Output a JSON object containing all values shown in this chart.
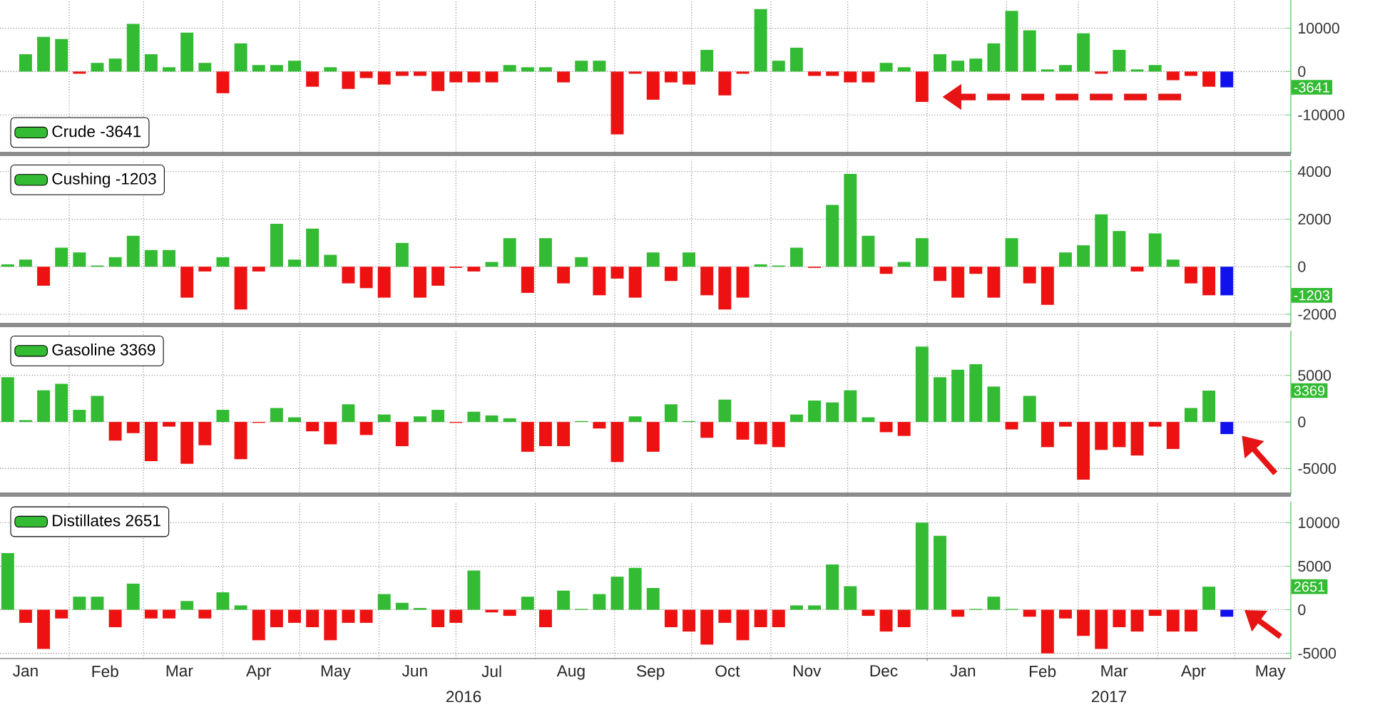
{
  "chart_data": [
    {
      "type": "bar",
      "x": [
        "2016-01-15",
        "2016-01-22",
        "2016-01-29",
        "2016-02-05",
        "2016-02-12",
        "2016-02-19",
        "2016-02-26",
        "2016-03-04",
        "2016-03-11",
        "2016-03-18",
        "2016-03-25",
        "2016-04-01",
        "2016-04-08",
        "2016-04-15",
        "2016-04-22",
        "2016-04-29",
        "2016-05-06",
        "2016-05-13",
        "2016-05-20",
        "2016-05-27",
        "2016-06-03",
        "2016-06-10",
        "2016-06-17",
        "2016-06-24",
        "2016-07-01",
        "2016-07-08",
        "2016-07-15",
        "2016-07-22",
        "2016-07-29",
        "2016-08-05",
        "2016-08-12",
        "2016-08-19",
        "2016-08-26",
        "2016-09-02",
        "2016-09-09",
        "2016-09-16",
        "2016-09-23",
        "2016-09-30",
        "2016-10-07",
        "2016-10-14",
        "2016-10-21",
        "2016-10-28",
        "2016-11-04",
        "2016-11-11",
        "2016-11-18",
        "2016-11-25",
        "2016-12-02",
        "2016-12-09",
        "2016-12-16",
        "2016-12-23",
        "2016-12-30",
        "2017-01-06",
        "2017-01-13",
        "2017-01-20",
        "2017-01-27",
        "2017-02-03",
        "2017-02-10",
        "2017-02-17",
        "2017-02-24",
        "2017-03-03",
        "2017-03-10",
        "2017-03-17",
        "2017-03-24",
        "2017-03-31",
        "2017-04-07",
        "2017-04-14",
        "2017-04-21",
        "2017-04-28"
      ],
      "xlim": [
        "2016-01-05",
        "2017-05-23"
      ],
      "xticks": [
        {
          "value": "2016-02-01",
          "label": null
        },
        {
          "value": "2016-03-01",
          "label": null
        },
        {
          "value": "2016-04-01",
          "label": null
        },
        {
          "value": "2016-05-01",
          "label": null
        },
        {
          "value": "2016-06-01",
          "label": null
        },
        {
          "value": "2016-07-01",
          "label": null
        },
        {
          "value": "2016-08-01",
          "label": null
        },
        {
          "value": "2016-09-01",
          "label": null
        },
        {
          "value": "2016-10-01",
          "label": null
        },
        {
          "value": "2016-11-01",
          "label": null
        },
        {
          "value": "2016-12-01",
          "label": null
        },
        {
          "value": "2017-01-01",
          "label": null
        },
        {
          "value": "2017-02-01",
          "label": null
        },
        {
          "value": "2017-03-01",
          "label": null
        },
        {
          "value": "2017-04-01",
          "label": null
        },
        {
          "value": "2017-05-01",
          "label": null
        }
      ],
      "ylim": [
        -19000,
        16500
      ],
      "yticks": [
        -10000,
        0,
        10000
      ],
      "grid": true,
      "legend": "bottom left",
      "tick_labels": "y",
      "series": [
        {
          "name": "Crude -3641",
          "color": "#33bb33",
          "values": [
            4000,
            8000,
            7500,
            -500,
            2000,
            3000,
            11000,
            4000,
            1000,
            9000,
            2000,
            -5000,
            6500,
            1500,
            1500,
            2500,
            -3500,
            1000,
            -4000,
            -1500,
            -3000,
            -1000,
            -1000,
            -4500,
            -2500,
            -2500,
            -2500,
            1500,
            1000,
            1000,
            -2500,
            2500,
            2500,
            -14500,
            -500,
            -6500,
            -2500,
            -3000,
            5000,
            -5500,
            -500,
            14400,
            2500,
            5500,
            -1000,
            -1000,
            -2500,
            -2500,
            2000,
            1000,
            -7000,
            4000,
            2500,
            3000,
            6500,
            14000,
            9500,
            500,
            1500,
            8800,
            -500,
            5000,
            500,
            1500,
            -2000,
            -1000,
            -3500,
            -3641
          ],
          "colors": [
            "#33bb33",
            "#33bb33",
            "#33bb33",
            "#ee1111",
            "#33bb33",
            "#33bb33",
            "#33bb33",
            "#33bb33",
            "#33bb33",
            "#33bb33",
            "#33bb33",
            "#ee1111",
            "#33bb33",
            "#33bb33",
            "#33bb33",
            "#33bb33",
            "#ee1111",
            "#33bb33",
            "#ee1111",
            "#ee1111",
            "#ee1111",
            "#ee1111",
            "#ee1111",
            "#ee1111",
            "#ee1111",
            "#ee1111",
            "#ee1111",
            "#33bb33",
            "#33bb33",
            "#33bb33",
            "#ee1111",
            "#33bb33",
            "#33bb33",
            "#ee1111",
            "#ee1111",
            "#ee1111",
            "#ee1111",
            "#ee1111",
            "#33bb33",
            "#ee1111",
            "#ee1111",
            "#33bb33",
            "#33bb33",
            "#33bb33",
            "#ee1111",
            "#ee1111",
            "#ee1111",
            "#ee1111",
            "#33bb33",
            "#33bb33",
            "#ee1111",
            "#33bb33",
            "#33bb33",
            "#33bb33",
            "#33bb33",
            "#33bb33",
            "#33bb33",
            "#33bb33",
            "#33bb33",
            "#33bb33",
            "#ee1111",
            "#33bb33",
            "#33bb33",
            "#33bb33",
            "#ee1111",
            "#ee1111",
            "#ee1111",
            "#1111ee"
          ]
        }
      ],
      "annotations": [
        {
          "text": "-3641",
          "y": -3641
        }
      ]
    },
    {
      "type": "bar",
      "x": [
        "2016-01-08",
        "2016-01-15",
        "2016-01-22",
        "2016-01-29",
        "2016-02-05",
        "2016-02-12",
        "2016-02-19",
        "2016-02-26",
        "2016-03-04",
        "2016-03-11",
        "2016-03-18",
        "2016-03-25",
        "2016-04-01",
        "2016-04-08",
        "2016-04-15",
        "2016-04-22",
        "2016-04-29",
        "2016-05-06",
        "2016-05-13",
        "2016-05-20",
        "2016-05-27",
        "2016-06-03",
        "2016-06-10",
        "2016-06-17",
        "2016-06-24",
        "2016-07-01",
        "2016-07-08",
        "2016-07-15",
        "2016-07-22",
        "2016-07-29",
        "2016-08-05",
        "2016-08-12",
        "2016-08-19",
        "2016-08-26",
        "2016-09-02",
        "2016-09-09",
        "2016-09-16",
        "2016-09-23",
        "2016-09-30",
        "2016-10-07",
        "2016-10-14",
        "2016-10-21",
        "2016-10-28",
        "2016-11-04",
        "2016-11-11",
        "2016-11-18",
        "2016-11-25",
        "2016-12-02",
        "2016-12-09",
        "2016-12-16",
        "2016-12-23",
        "2016-12-30",
        "2017-01-06",
        "2017-01-13",
        "2017-01-20",
        "2017-01-27",
        "2017-02-03",
        "2017-02-10",
        "2017-02-17",
        "2017-02-24",
        "2017-03-03",
        "2017-03-10",
        "2017-03-17",
        "2017-03-24",
        "2017-03-31",
        "2017-04-07",
        "2017-04-14",
        "2017-04-21",
        "2017-04-28"
      ],
      "xlim": [
        "2016-01-05",
        "2017-05-23"
      ],
      "xticks": [
        {
          "value": "2016-02-01",
          "label": null
        },
        {
          "value": "2016-03-01",
          "label": null
        },
        {
          "value": "2016-04-01",
          "label": null
        },
        {
          "value": "2016-05-01",
          "label": null
        },
        {
          "value": "2016-06-01",
          "label": null
        },
        {
          "value": "2016-07-01",
          "label": null
        },
        {
          "value": "2016-08-01",
          "label": null
        },
        {
          "value": "2016-09-01",
          "label": null
        },
        {
          "value": "2016-10-01",
          "label": null
        },
        {
          "value": "2016-11-01",
          "label": null
        },
        {
          "value": "2016-12-01",
          "label": null
        },
        {
          "value": "2017-01-01",
          "label": null
        },
        {
          "value": "2017-02-01",
          "label": null
        },
        {
          "value": "2017-03-01",
          "label": null
        },
        {
          "value": "2017-04-01",
          "label": null
        },
        {
          "value": "2017-05-01",
          "label": null
        }
      ],
      "ylim": [
        -2450,
        4500
      ],
      "yticks": [
        -2000,
        0,
        2000,
        4000
      ],
      "grid": true,
      "legend": "top left",
      "tick_labels": "y",
      "series": [
        {
          "name": "Cushing -1203",
          "color": "#33bb33",
          "values": [
            100,
            300,
            -800,
            800,
            600,
            50,
            400,
            1300,
            700,
            700,
            -1300,
            -200,
            400,
            -1800,
            -200,
            1800,
            300,
            1600,
            500,
            -700,
            -900,
            -1300,
            1000,
            -1300,
            -800,
            -50,
            -200,
            200,
            1200,
            -1100,
            1200,
            -700,
            400,
            -1200,
            -500,
            -1300,
            600,
            -600,
            600,
            -1200,
            -1800,
            -1300,
            100,
            50,
            800,
            -50,
            2600,
            3900,
            1300,
            -300,
            200,
            1200,
            -600,
            -1300,
            -300,
            -1300,
            1200,
            -700,
            -1600,
            600,
            900,
            2200,
            1500,
            -200,
            1400,
            300,
            -700,
            -1200,
            -1203
          ],
          "colors": [
            "#33bb33",
            "#33bb33",
            "#ee1111",
            "#33bb33",
            "#33bb33",
            "#33bb33",
            "#33bb33",
            "#33bb33",
            "#33bb33",
            "#33bb33",
            "#ee1111",
            "#ee1111",
            "#33bb33",
            "#ee1111",
            "#ee1111",
            "#33bb33",
            "#33bb33",
            "#33bb33",
            "#33bb33",
            "#ee1111",
            "#ee1111",
            "#ee1111",
            "#33bb33",
            "#ee1111",
            "#ee1111",
            "#ee1111",
            "#ee1111",
            "#33bb33",
            "#33bb33",
            "#ee1111",
            "#33bb33",
            "#ee1111",
            "#33bb33",
            "#ee1111",
            "#ee1111",
            "#ee1111",
            "#33bb33",
            "#ee1111",
            "#33bb33",
            "#ee1111",
            "#ee1111",
            "#ee1111",
            "#33bb33",
            "#33bb33",
            "#33bb33",
            "#ee1111",
            "#33bb33",
            "#33bb33",
            "#33bb33",
            "#ee1111",
            "#33bb33",
            "#33bb33",
            "#ee1111",
            "#ee1111",
            "#ee1111",
            "#ee1111",
            "#33bb33",
            "#ee1111",
            "#ee1111",
            "#33bb33",
            "#33bb33",
            "#33bb33",
            "#33bb33",
            "#ee1111",
            "#33bb33",
            "#33bb33",
            "#ee1111",
            "#ee1111",
            "#1111ee"
          ]
        }
      ],
      "annotations": [
        {
          "text": "-1203",
          "y": -1203
        }
      ]
    },
    {
      "type": "bar",
      "x": [
        "2016-01-08",
        "2016-01-15",
        "2016-01-22",
        "2016-01-29",
        "2016-02-05",
        "2016-02-12",
        "2016-02-19",
        "2016-02-26",
        "2016-03-04",
        "2016-03-11",
        "2016-03-18",
        "2016-03-25",
        "2016-04-01",
        "2016-04-08",
        "2016-04-15",
        "2016-04-22",
        "2016-04-29",
        "2016-05-06",
        "2016-05-13",
        "2016-05-20",
        "2016-05-27",
        "2016-06-03",
        "2016-06-10",
        "2016-06-17",
        "2016-06-24",
        "2016-07-01",
        "2016-07-08",
        "2016-07-15",
        "2016-07-22",
        "2016-07-29",
        "2016-08-05",
        "2016-08-12",
        "2016-08-19",
        "2016-08-26",
        "2016-09-02",
        "2016-09-09",
        "2016-09-16",
        "2016-09-23",
        "2016-09-30",
        "2016-10-07",
        "2016-10-14",
        "2016-10-21",
        "2016-10-28",
        "2016-11-04",
        "2016-11-11",
        "2016-11-18",
        "2016-11-25",
        "2016-12-02",
        "2016-12-09",
        "2016-12-16",
        "2016-12-23",
        "2016-12-30",
        "2017-01-06",
        "2017-01-13",
        "2017-01-20",
        "2017-01-27",
        "2017-02-03",
        "2017-02-10",
        "2017-02-17",
        "2017-02-24",
        "2017-03-03",
        "2017-03-10",
        "2017-03-17",
        "2017-03-24",
        "2017-03-31",
        "2017-04-07",
        "2017-04-14",
        "2017-04-21",
        "2017-04-28"
      ],
      "xlim": [
        "2016-01-05",
        "2017-05-23"
      ],
      "xticks": [
        {
          "value": "2016-02-01",
          "label": null
        },
        {
          "value": "2016-03-01",
          "label": null
        },
        {
          "value": "2016-04-01",
          "label": null
        },
        {
          "value": "2016-05-01",
          "label": null
        },
        {
          "value": "2016-06-01",
          "label": null
        },
        {
          "value": "2016-07-01",
          "label": null
        },
        {
          "value": "2016-08-01",
          "label": null
        },
        {
          "value": "2016-09-01",
          "label": null
        },
        {
          "value": "2016-10-01",
          "label": null
        },
        {
          "value": "2016-11-01",
          "label": null
        },
        {
          "value": "2016-12-01",
          "label": null
        },
        {
          "value": "2017-01-01",
          "label": null
        },
        {
          "value": "2017-02-01",
          "label": null
        },
        {
          "value": "2017-03-01",
          "label": null
        },
        {
          "value": "2017-04-01",
          "label": null
        },
        {
          "value": "2017-05-01",
          "label": null
        }
      ],
      "ylim": [
        -7800,
        9800
      ],
      "yticks": [
        -5000,
        0,
        5000
      ],
      "grid": true,
      "legend": "top left",
      "tick_labels": "y",
      "series": [
        {
          "name": "Gasoline 3369",
          "color": "#33bb33",
          "values": [
            4800,
            200,
            3400,
            4100,
            1300,
            2800,
            -2000,
            -1200,
            -4200,
            -500,
            -4500,
            -2500,
            1300,
            -4000,
            -100,
            1500,
            500,
            -1000,
            -2400,
            1900,
            -1400,
            800,
            -2600,
            600,
            1300,
            -100,
            1100,
            700,
            400,
            -3200,
            -2600,
            -2600,
            100,
            -700,
            -4300,
            600,
            -3200,
            1900,
            100,
            -1700,
            2400,
            -1900,
            -2400,
            -2700,
            800,
            2300,
            2100,
            3400,
            500,
            -1100,
            -1500,
            8100,
            4800,
            5600,
            6200,
            3800,
            -800,
            2800,
            -2700,
            -500,
            -6200,
            -3000,
            -2700,
            -3600,
            -500,
            -2900,
            1500,
            3369,
            -1300
          ],
          "colors": [
            "#33bb33",
            "#33bb33",
            "#33bb33",
            "#33bb33",
            "#33bb33",
            "#33bb33",
            "#ee1111",
            "#ee1111",
            "#ee1111",
            "#ee1111",
            "#ee1111",
            "#ee1111",
            "#33bb33",
            "#ee1111",
            "#ee1111",
            "#33bb33",
            "#33bb33",
            "#ee1111",
            "#ee1111",
            "#33bb33",
            "#ee1111",
            "#33bb33",
            "#ee1111",
            "#33bb33",
            "#33bb33",
            "#ee1111",
            "#33bb33",
            "#33bb33",
            "#33bb33",
            "#ee1111",
            "#ee1111",
            "#ee1111",
            "#33bb33",
            "#ee1111",
            "#ee1111",
            "#33bb33",
            "#ee1111",
            "#33bb33",
            "#33bb33",
            "#ee1111",
            "#33bb33",
            "#ee1111",
            "#ee1111",
            "#ee1111",
            "#33bb33",
            "#33bb33",
            "#33bb33",
            "#33bb33",
            "#33bb33",
            "#ee1111",
            "#ee1111",
            "#33bb33",
            "#33bb33",
            "#33bb33",
            "#33bb33",
            "#33bb33",
            "#ee1111",
            "#33bb33",
            "#ee1111",
            "#ee1111",
            "#ee1111",
            "#ee1111",
            "#ee1111",
            "#ee1111",
            "#ee1111",
            "#ee1111",
            "#33bb33",
            "#33bb33",
            "#1111ee"
          ]
        }
      ],
      "annotations": [
        {
          "text": "3369",
          "y": 3369
        }
      ]
    },
    {
      "type": "bar",
      "x": [
        "2016-01-08",
        "2016-01-15",
        "2016-01-22",
        "2016-01-29",
        "2016-02-05",
        "2016-02-12",
        "2016-02-19",
        "2016-02-26",
        "2016-03-04",
        "2016-03-11",
        "2016-03-18",
        "2016-03-25",
        "2016-04-01",
        "2016-04-08",
        "2016-04-15",
        "2016-04-22",
        "2016-04-29",
        "2016-05-06",
        "2016-05-13",
        "2016-05-20",
        "2016-05-27",
        "2016-06-03",
        "2016-06-10",
        "2016-06-17",
        "2016-06-24",
        "2016-07-01",
        "2016-07-08",
        "2016-07-15",
        "2016-07-22",
        "2016-07-29",
        "2016-08-05",
        "2016-08-12",
        "2016-08-19",
        "2016-08-26",
        "2016-09-02",
        "2016-09-09",
        "2016-09-16",
        "2016-09-23",
        "2016-09-30",
        "2016-10-07",
        "2016-10-14",
        "2016-10-21",
        "2016-10-28",
        "2016-11-04",
        "2016-11-11",
        "2016-11-18",
        "2016-11-25",
        "2016-12-02",
        "2016-12-09",
        "2016-12-16",
        "2016-12-23",
        "2016-12-30",
        "2017-01-06",
        "2017-01-13",
        "2017-01-20",
        "2017-01-27",
        "2017-02-03",
        "2017-02-10",
        "2017-02-17",
        "2017-02-24",
        "2017-03-03",
        "2017-03-10",
        "2017-03-17",
        "2017-03-24",
        "2017-03-31",
        "2017-04-07",
        "2017-04-14",
        "2017-04-21",
        "2017-04-28"
      ],
      "xlim": [
        "2016-01-05",
        "2017-05-23"
      ],
      "xticks": [
        {
          "value": "2016-01-15",
          "label": "Jan"
        },
        {
          "value": "2016-02-01",
          "label": null
        },
        {
          "value": "2016-02-15",
          "label": "Feb"
        },
        {
          "value": "2016-03-01",
          "label": null
        },
        {
          "value": "2016-03-15",
          "label": "Mar"
        },
        {
          "value": "2016-04-01",
          "label": null
        },
        {
          "value": "2016-04-15",
          "label": "Apr"
        },
        {
          "value": "2016-05-01",
          "label": null
        },
        {
          "value": "2016-05-15",
          "label": "May"
        },
        {
          "value": "2016-06-01",
          "label": null
        },
        {
          "value": "2016-06-15",
          "label": "Jun"
        },
        {
          "value": "2016-07-01",
          "label": null
        },
        {
          "value": "2016-07-15",
          "label": "Jul"
        },
        {
          "value": "2016-08-01",
          "label": null
        },
        {
          "value": "2016-08-15",
          "label": "Aug"
        },
        {
          "value": "2016-09-01",
          "label": null
        },
        {
          "value": "2016-09-15",
          "label": "Sep"
        },
        {
          "value": "2016-10-01",
          "label": null
        },
        {
          "value": "2016-10-15",
          "label": "Oct"
        },
        {
          "value": "2016-11-01",
          "label": null
        },
        {
          "value": "2016-11-15",
          "label": "Nov"
        },
        {
          "value": "2016-12-01",
          "label": null
        },
        {
          "value": "2016-12-15",
          "label": "Dec"
        },
        {
          "value": "2017-01-01",
          "label": null
        },
        {
          "value": "2017-01-15",
          "label": "Jan"
        },
        {
          "value": "2017-02-01",
          "label": null
        },
        {
          "value": "2017-02-15",
          "label": "Feb"
        },
        {
          "value": "2017-03-01",
          "label": null
        },
        {
          "value": "2017-03-15",
          "label": "Mar"
        },
        {
          "value": "2017-04-01",
          "label": null
        },
        {
          "value": "2017-04-15",
          "label": "Apr"
        },
        {
          "value": "2017-05-01",
          "label": null
        },
        {
          "value": "2017-05-15",
          "label": "May"
        }
      ],
      "ylim": [
        -5600,
        12400
      ],
      "yticks": [
        -5000,
        0,
        5000,
        10000
      ],
      "grid": true,
      "legend": "top left",
      "series": [
        {
          "name": "Distillates 2651",
          "color": "#33bb33",
          "values": [
            6500,
            -1500,
            -4500,
            -1000,
            1500,
            1500,
            -2000,
            3000,
            -1000,
            -1000,
            1000,
            -1000,
            2000,
            500,
            -3500,
            -2000,
            -1500,
            -2000,
            -3500,
            -1500,
            -1500,
            1800,
            800,
            200,
            -2000,
            -1500,
            4500,
            -300,
            -700,
            1500,
            -2000,
            2200,
            100,
            1800,
            3800,
            4800,
            2500,
            -2000,
            -2500,
            -4000,
            -1500,
            -3500,
            -2000,
            -2000,
            500,
            500,
            5200,
            2700,
            -700,
            -2500,
            -2000,
            10000,
            8500,
            -800,
            100,
            1500,
            100,
            -800,
            -5000,
            -1000,
            -3000,
            -4500,
            -2000,
            -2500,
            -700,
            -2500,
            -2500,
            2651,
            -800
          ],
          "colors": [
            "#33bb33",
            "#ee1111",
            "#ee1111",
            "#ee1111",
            "#33bb33",
            "#33bb33",
            "#ee1111",
            "#33bb33",
            "#ee1111",
            "#ee1111",
            "#33bb33",
            "#ee1111",
            "#33bb33",
            "#33bb33",
            "#ee1111",
            "#ee1111",
            "#ee1111",
            "#ee1111",
            "#ee1111",
            "#ee1111",
            "#ee1111",
            "#33bb33",
            "#33bb33",
            "#33bb33",
            "#ee1111",
            "#ee1111",
            "#33bb33",
            "#ee1111",
            "#ee1111",
            "#33bb33",
            "#ee1111",
            "#33bb33",
            "#33bb33",
            "#33bb33",
            "#33bb33",
            "#33bb33",
            "#33bb33",
            "#ee1111",
            "#ee1111",
            "#ee1111",
            "#ee1111",
            "#ee1111",
            "#ee1111",
            "#ee1111",
            "#33bb33",
            "#33bb33",
            "#33bb33",
            "#33bb33",
            "#ee1111",
            "#ee1111",
            "#ee1111",
            "#33bb33",
            "#33bb33",
            "#ee1111",
            "#33bb33",
            "#33bb33",
            "#33bb33",
            "#ee1111",
            "#ee1111",
            "#ee1111",
            "#ee1111",
            "#ee1111",
            "#ee1111",
            "#ee1111",
            "#ee1111",
            "#ee1111",
            "#ee1111",
            "#33bb33",
            "#1111ee"
          ]
        }
      ],
      "annotations": [
        {
          "text": "2651",
          "y": 2651
        },
        "2016",
        "2017"
      ]
    }
  ]
}
